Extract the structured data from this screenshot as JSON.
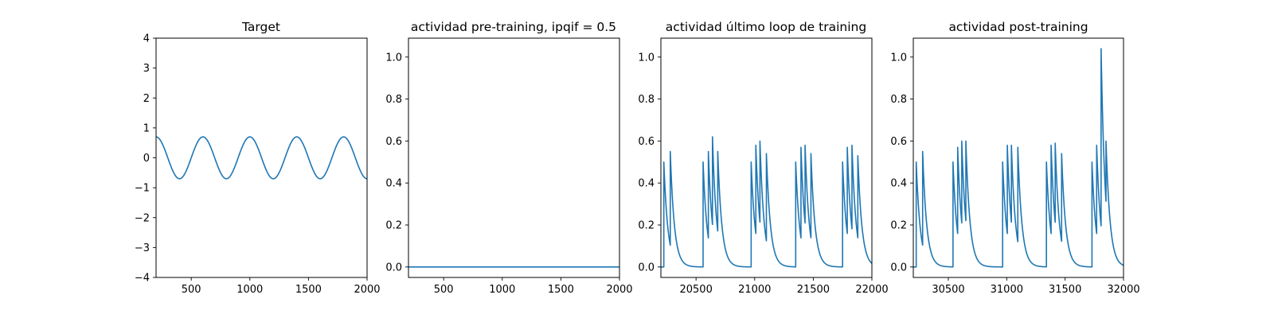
{
  "colors": {
    "series": "#1f77b4",
    "axis": "#000000",
    "background": "#ffffff"
  },
  "chart_data": [
    {
      "type": "line",
      "title": "Target",
      "xlabel": "",
      "ylabel": "",
      "xlim": [
        200,
        2000
      ],
      "ylim": [
        -4,
        4
      ],
      "xticks": [
        500,
        1000,
        1500,
        2000
      ],
      "yticks": [
        -4,
        -3,
        -2,
        -1,
        0,
        1,
        2,
        3,
        4
      ],
      "grid": false,
      "legend": "none",
      "series": [
        {
          "kind": "sine",
          "amplitude": 0.7,
          "period": 400,
          "peak_at": 200,
          "x_range": [
            200,
            2000
          ]
        }
      ]
    },
    {
      "type": "line",
      "title": "actividad pre-training, ipqif = 0.5",
      "xlabel": "",
      "ylabel": "",
      "xlim": [
        200,
        2000
      ],
      "ylim": [
        -0.05,
        1.09
      ],
      "xticks": [
        500,
        1000,
        1500,
        2000
      ],
      "yticks": [
        0.0,
        0.2,
        0.4,
        0.6,
        0.8,
        1.0
      ],
      "grid": false,
      "legend": "none",
      "series": [
        {
          "kind": "constant",
          "value": 0.0,
          "x_range": [
            200,
            2000
          ]
        }
      ]
    },
    {
      "type": "line",
      "title": "actividad último loop de training",
      "xlabel": "",
      "ylabel": "",
      "xlim": [
        20200,
        22000
      ],
      "ylim": [
        -0.05,
        1.09
      ],
      "xticks": [
        20500,
        21000,
        21500,
        22000
      ],
      "yticks": [
        0.0,
        0.2,
        0.4,
        0.6,
        0.8,
        1.0
      ],
      "grid": false,
      "legend": "none",
      "series": [
        {
          "kind": "spike_train",
          "x_range": [
            20200,
            22000
          ],
          "decay_tau": 35,
          "bursts": [
            {
              "start": 20200,
              "spikes": [
                [
                  20225,
                  0.5
                ],
                [
                  20280,
                  0.55
                ]
              ]
            },
            {
              "start": 20560,
              "spikes": [
                [
                  20560,
                  0.5
                ],
                [
                  20605,
                  0.55
                ],
                [
                  20640,
                  0.62
                ],
                [
                  20685,
                  0.55
                ]
              ]
            },
            {
              "start": 20970,
              "spikes": [
                [
                  20970,
                  0.5
                ],
                [
                  21010,
                  0.58
                ],
                [
                  21045,
                  0.6
                ],
                [
                  21100,
                  0.54
                ]
              ]
            },
            {
              "start": 21350,
              "spikes": [
                [
                  21350,
                  0.5
                ],
                [
                  21395,
                  0.57
                ],
                [
                  21430,
                  0.58
                ],
                [
                  21480,
                  0.54
                ]
              ]
            },
            {
              "start": 21750,
              "spikes": [
                [
                  21750,
                  0.5
                ],
                [
                  21790,
                  0.57
                ],
                [
                  21830,
                  0.58
                ],
                [
                  21880,
                  0.53
                ]
              ]
            }
          ]
        }
      ]
    },
    {
      "type": "line",
      "title": "actividad post-training",
      "xlabel": "",
      "ylabel": "",
      "xlim": [
        30200,
        32000
      ],
      "ylim": [
        -0.05,
        1.09
      ],
      "xticks": [
        30500,
        31000,
        31500,
        32000
      ],
      "yticks": [
        0.0,
        0.2,
        0.4,
        0.6,
        0.8,
        1.0
      ],
      "grid": false,
      "legend": "none",
      "series": [
        {
          "kind": "spike_train",
          "x_range": [
            30200,
            32000
          ],
          "decay_tau": 35,
          "bursts": [
            {
              "start": 30200,
              "spikes": [
                [
                  30225,
                  0.5
                ],
                [
                  30280,
                  0.55
                ]
              ]
            },
            {
              "start": 30540,
              "spikes": [
                [
                  30540,
                  0.5
                ],
                [
                  30580,
                  0.57
                ],
                [
                  30615,
                  0.6
                ],
                [
                  30650,
                  0.6
                ]
              ]
            },
            {
              "start": 30965,
              "spikes": [
                [
                  30965,
                  0.5
                ],
                [
                  31005,
                  0.58
                ],
                [
                  31040,
                  0.58
                ],
                [
                  31095,
                  0.57
                ]
              ]
            },
            {
              "start": 31340,
              "spikes": [
                [
                  31340,
                  0.5
                ],
                [
                  31380,
                  0.58
                ],
                [
                  31415,
                  0.59
                ],
                [
                  31470,
                  0.54
                ]
              ]
            },
            {
              "start": 31730,
              "spikes": [
                [
                  31730,
                  0.5
                ],
                [
                  31770,
                  0.58
                ],
                [
                  31808,
                  1.04
                ],
                [
                  31850,
                  0.6
                ]
              ]
            }
          ]
        }
      ]
    }
  ]
}
